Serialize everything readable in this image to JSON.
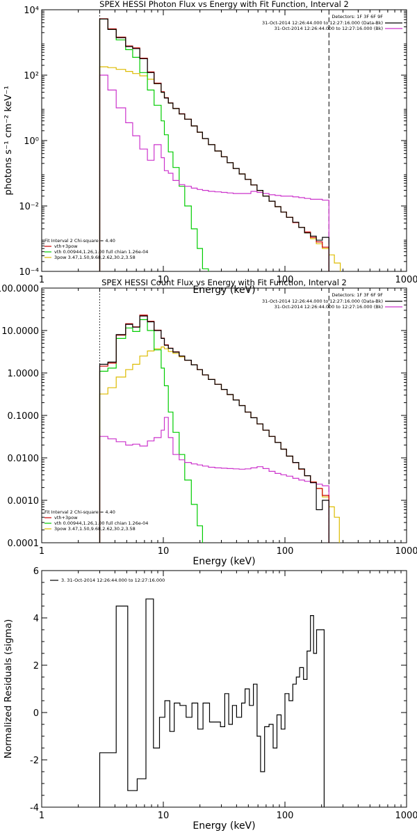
{
  "chart_data": [
    {
      "type": "line",
      "title": "SPEX HESSI Photon Flux vs Energy with Fit Function, Interval 2",
      "xlabel": "Energy (keV)",
      "ylabel": "photons s⁻¹ cm⁻² keV⁻¹",
      "xscale": "log",
      "yscale": "log",
      "xlim": [
        1,
        1000
      ],
      "ylim": [
        0.0001,
        10000
      ],
      "xticks": [
        1,
        10,
        100,
        1000
      ],
      "xtick_labels": [
        "1",
        "10",
        "100",
        "1000"
      ],
      "yticks": [
        0.0001,
        0.01,
        1,
        100,
        10000
      ],
      "ytick_labels": [
        "10⁻⁴",
        "10⁻²",
        "10⁰",
        "10²",
        "10⁴"
      ],
      "vlines": [
        {
          "x": 3,
          "style": "dotted",
          "color": "#000000"
        },
        {
          "x": 230,
          "style": "dashed",
          "color": "#000000"
        }
      ],
      "legend_top": {
        "position": "top-right",
        "header": "Detectors: 1F 3F 6F 9F",
        "entries": [
          {
            "label": "31-Oct-2014 12:26:44.000 to 12:27:16.000 (Data-Bk)",
            "color": "#000000"
          },
          {
            "label": "31-Oct-2014 12:26:44.000 to 12:27:16.000 (Bk)",
            "color": "#cc33cc"
          }
        ]
      },
      "legend_fit": {
        "position": "bottom-left",
        "header": "Fit Interval 2   Chi-square = 4.40",
        "entries": [
          {
            "label": "vth+3pow",
            "color": "#cc0000"
          },
          {
            "label": "vth 0.00944,1.26,1.00  full chian 1.26e-04",
            "color": "#00cc00"
          },
          {
            "label": "3pow 3.47,1.50,9.68,2.62,30.2,3.58",
            "color": "#ddbb00"
          }
        ]
      },
      "edges": [
        3,
        3.5,
        4.1,
        4.9,
        5.6,
        6.4,
        7.4,
        8.4,
        9.6,
        10.2,
        11,
        12,
        13.5,
        15,
        17,
        19,
        21,
        23.5,
        26.5,
        30,
        33.5,
        37.5,
        42,
        47,
        52.5,
        59,
        66,
        74,
        83,
        92.5,
        103,
        116,
        130,
        145,
        162,
        181,
        203,
        230
      ],
      "series": [
        {
          "name": "Data-Bk",
          "color": "#000000",
          "values": [
            5200,
            2500,
            1400,
            750,
            650,
            320,
            120,
            55,
            30,
            20,
            14,
            9.5,
            6.5,
            4.5,
            2.8,
            1.8,
            1.15,
            0.75,
            0.48,
            0.32,
            0.21,
            0.14,
            0.095,
            0.065,
            0.044,
            0.03,
            0.02,
            0.014,
            0.0095,
            0.0065,
            0.0045,
            0.0032,
            0.0022,
            0.0015,
            0.0012,
            0.0009,
            0.0011
          ]
        },
        {
          "name": "Bk",
          "color": "#cc33cc",
          "values": [
            100,
            35,
            10,
            3.5,
            1.4,
            0.55,
            0.25,
            0.75,
            0.3,
            0.12,
            0.1,
            0.06,
            0.045,
            0.04,
            0.035,
            0.032,
            0.03,
            0.028,
            0.027,
            0.026,
            0.025,
            0.024,
            0.024,
            0.024,
            0.028,
            0.026,
            0.024,
            0.022,
            0.021,
            0.02,
            0.02,
            0.019,
            0.018,
            0.017,
            0.016,
            0.016,
            0.015
          ]
        },
        {
          "name": "vth+3pow",
          "color": "#cc0000",
          "values": [
            5300,
            2600,
            1450,
            780,
            680,
            330,
            125,
            57,
            31,
            20.5,
            14.2,
            9.6,
            6.6,
            4.5,
            2.8,
            1.8,
            1.15,
            0.75,
            0.48,
            0.32,
            0.21,
            0.14,
            0.095,
            0.065,
            0.044,
            0.03,
            0.02,
            0.014,
            0.0095,
            0.0065,
            0.0045,
            0.0031,
            0.0022,
            0.0016,
            0.0011,
            0.0008,
            0.00055
          ]
        },
        {
          "name": "vth",
          "color": "#00cc00",
          "values": [
            5200,
            2500,
            1200,
            600,
            350,
            120,
            35,
            12,
            4,
            1.5,
            0.45,
            0.15,
            0.04,
            0.01,
            0.002,
            0.0005,
            0.00012
          ]
        },
        {
          "name": "3pow",
          "color": "#ddbb00",
          "values": [
            180,
            170,
            150,
            130,
            112,
            95,
            75,
            55,
            30,
            20,
            14,
            9.5,
            6.5,
            4.5,
            2.8,
            1.8,
            1.15,
            0.75,
            0.48,
            0.32,
            0.21,
            0.14,
            0.095,
            0.065,
            0.044,
            0.03,
            0.02,
            0.014,
            0.0095,
            0.0065,
            0.0045,
            0.0031,
            0.0022,
            0.0015,
            0.001,
            0.0007,
            0.0005,
            0.00032,
            0.00018
          ]
        }
      ],
      "edges_3pow": [
        3,
        3.5,
        4.1,
        4.9,
        5.6,
        6.4,
        7.4,
        8.4,
        9.6,
        10.2,
        11,
        12,
        13.5,
        15,
        17,
        19,
        21,
        23.5,
        26.5,
        30,
        33.5,
        37.5,
        42,
        47,
        52.5,
        59,
        66,
        74,
        83,
        92.5,
        103,
        116,
        130,
        145,
        162,
        181,
        203,
        230,
        255,
        285
      ]
    },
    {
      "type": "line",
      "title": "SPEX HESSI Count Flux vs Energy with Fit Function, Interval 2",
      "xlabel": "Energy (keV)",
      "ylabel": "",
      "xscale": "log",
      "yscale": "log",
      "xlim": [
        1,
        1000
      ],
      "ylim": [
        0.0001,
        100
      ],
      "xticks": [
        1,
        10,
        100,
        1000
      ],
      "xtick_labels": [
        "1",
        "10",
        "100",
        "1000"
      ],
      "yticks": [
        0.0001,
        0.001,
        0.01,
        0.1,
        1,
        10,
        100
      ],
      "ytick_labels": [
        "0.0001",
        "0.0010",
        "0.0100",
        "0.1000",
        "1.0000",
        "10.0000",
        "100.0000"
      ],
      "vlines": [
        {
          "x": 3,
          "style": "dotted",
          "color": "#000000"
        },
        {
          "x": 230,
          "style": "dashed",
          "color": "#000000"
        }
      ],
      "legend_top": {
        "position": "top-right",
        "header": "Detectors: 1F 3F 6F 9F",
        "entries": [
          {
            "label": "31-Oct-2014 12:26:44.000 to 12:27:16.000 (Data-Bk)",
            "color": "#000000"
          },
          {
            "label": "31-Oct-2014 12:26:44.000 to 12:27:16.000 (Bk)",
            "color": "#cc33cc"
          }
        ]
      },
      "legend_fit": {
        "position": "bottom-left",
        "header": "Fit Interval 2   Chi-square = 4.40",
        "entries": [
          {
            "label": "vth+3pow",
            "color": "#cc0000"
          },
          {
            "label": "vth 0.00944,1.26,1.00  full chian 1.26e-04",
            "color": "#00cc00"
          },
          {
            "label": "3pow 3.47,1.50,9.68,2.62,30.2,3.58",
            "color": "#ddbb00"
          }
        ]
      },
      "edges": [
        3,
        3.5,
        4.1,
        4.9,
        5.6,
        6.4,
        7.4,
        8.4,
        9.6,
        10.2,
        11,
        12,
        13.5,
        15,
        17,
        19,
        21,
        23.5,
        26.5,
        30,
        33.5,
        37.5,
        42,
        47,
        52.5,
        59,
        66,
        74,
        83,
        92.5,
        103,
        116,
        130,
        145,
        162,
        181,
        203,
        230
      ],
      "series": [
        {
          "name": "Data-Bk",
          "color": "#000000",
          "values": [
            1.6,
            1.8,
            8,
            14,
            12,
            22,
            16,
            10,
            6.5,
            4.5,
            3.8,
            3.1,
            2.5,
            2,
            1.55,
            1.2,
            0.9,
            0.7,
            0.54,
            0.41,
            0.31,
            0.23,
            0.17,
            0.12,
            0.088,
            0.063,
            0.045,
            0.032,
            0.023,
            0.016,
            0.011,
            0.0078,
            0.0055,
            0.0038,
            0.0026,
            0.0006,
            0.001
          ]
        },
        {
          "name": "Bk",
          "color": "#cc33cc",
          "values": [
            0.032,
            0.028,
            0.024,
            0.02,
            0.021,
            0.019,
            0.025,
            0.03,
            0.045,
            0.09,
            0.03,
            0.012,
            0.009,
            0.0078,
            0.0072,
            0.0068,
            0.0064,
            0.006,
            0.0058,
            0.0057,
            0.0056,
            0.0055,
            0.0054,
            0.0055,
            0.0058,
            0.0062,
            0.0056,
            0.0048,
            0.0043,
            0.004,
            0.0037,
            0.0033,
            0.003,
            0.0028,
            0.0026,
            0.0024,
            0.0022
          ]
        },
        {
          "name": "vth+3pow",
          "color": "#cc0000",
          "values": [
            1.45,
            1.7,
            7.8,
            14.5,
            12.2,
            23,
            16.5,
            10.2,
            6.6,
            4.6,
            3.85,
            3.15,
            2.5,
            2,
            1.55,
            1.2,
            0.9,
            0.7,
            0.54,
            0.41,
            0.31,
            0.23,
            0.17,
            0.12,
            0.088,
            0.063,
            0.045,
            0.032,
            0.023,
            0.016,
            0.011,
            0.0077,
            0.0054,
            0.0038,
            0.0027,
            0.0019,
            0.0013
          ]
        },
        {
          "name": "vth",
          "color": "#00cc00",
          "values": [
            1.1,
            1.3,
            6.5,
            11.5,
            9.5,
            18,
            10,
            3.5,
            1.3,
            0.5,
            0.12,
            0.04,
            0.012,
            0.003,
            0.0008,
            0.00025,
            9e-05
          ]
        },
        {
          "name": "3pow",
          "color": "#ddbb00",
          "values": [
            0.32,
            0.45,
            0.8,
            1.2,
            1.6,
            2.5,
            3.3,
            3.7,
            4.1,
            3.7,
            3.2,
            2.9,
            2.4,
            2,
            1.55,
            1.2,
            0.9,
            0.7,
            0.54,
            0.41,
            0.31,
            0.23,
            0.17,
            0.12,
            0.088,
            0.063,
            0.045,
            0.032,
            0.023,
            0.016,
            0.011,
            0.0077,
            0.0054,
            0.0038,
            0.0027,
            0.0019,
            0.0012,
            0.0007,
            0.0004
          ]
        },
        {
          "name": "edges_3pow_ref",
          "color": "none",
          "values": []
        }
      ],
      "edges_3pow": [
        3,
        3.5,
        4.1,
        4.9,
        5.6,
        6.4,
        7.4,
        8.4,
        9.6,
        10.2,
        11,
        12,
        13.5,
        15,
        17,
        19,
        21,
        23.5,
        26.5,
        30,
        33.5,
        37.5,
        42,
        47,
        52.5,
        59,
        66,
        74,
        83,
        92.5,
        103,
        116,
        130,
        145,
        162,
        181,
        203,
        230,
        255,
        280
      ]
    },
    {
      "type": "line",
      "title": "",
      "xlabel": "Energy (keV)",
      "ylabel": "Normalized Residuals (sigma)",
      "xscale": "log",
      "yscale": "linear",
      "xlim": [
        1,
        1000
      ],
      "ylim": [
        -4,
        6
      ],
      "xticks": [
        1,
        10,
        100,
        1000
      ],
      "xtick_labels": [
        "1",
        "10",
        "100",
        "1000"
      ],
      "yticks": [
        -4,
        -2,
        0,
        2,
        4,
        6
      ],
      "ytick_labels": [
        "-4",
        "-2",
        "0",
        "2",
        "4",
        "6"
      ],
      "legend_top": {
        "position": "top-left",
        "header": "",
        "entries": [
          {
            "label": "3. 31-Oct-2014 12:26:44.000 to 12:27:16.000",
            "color": "#000000"
          }
        ]
      },
      "edges": [
        3,
        4.1,
        5.1,
        6.1,
        7.2,
        8.3,
        9.3,
        10.3,
        11.3,
        12.3,
        13.7,
        15.4,
        17.2,
        19.2,
        21.2,
        24,
        26.5,
        29.5,
        32,
        34.5,
        37,
        40,
        44,
        47,
        51,
        55,
        59,
        63,
        68,
        74,
        80,
        86,
        93,
        100,
        108,
        116,
        124,
        132,
        142,
        152,
        162,
        172,
        182,
        195,
        210,
        222
      ],
      "series": [
        {
          "name": "Residuals",
          "color": "#000000",
          "values": [
            -1.7,
            4.5,
            -3.3,
            -2.8,
            4.8,
            -1.5,
            -0.2,
            0.5,
            -0.8,
            0.4,
            0.3,
            -0.2,
            0.4,
            -0.7,
            0.4,
            -0.4,
            -0.4,
            -0.6,
            0.8,
            -0.5,
            0.3,
            -0.2,
            0.4,
            1.0,
            0.3,
            1.2,
            -1.0,
            -2.5,
            -0.6,
            -0.5,
            -1.5,
            -0.1,
            -0.7,
            0.8,
            0.5,
            1.2,
            1.5,
            1.9,
            1.4,
            2.6,
            4.1,
            2.5,
            3.5,
            3.5,
            -4.5
          ]
        }
      ]
    }
  ]
}
